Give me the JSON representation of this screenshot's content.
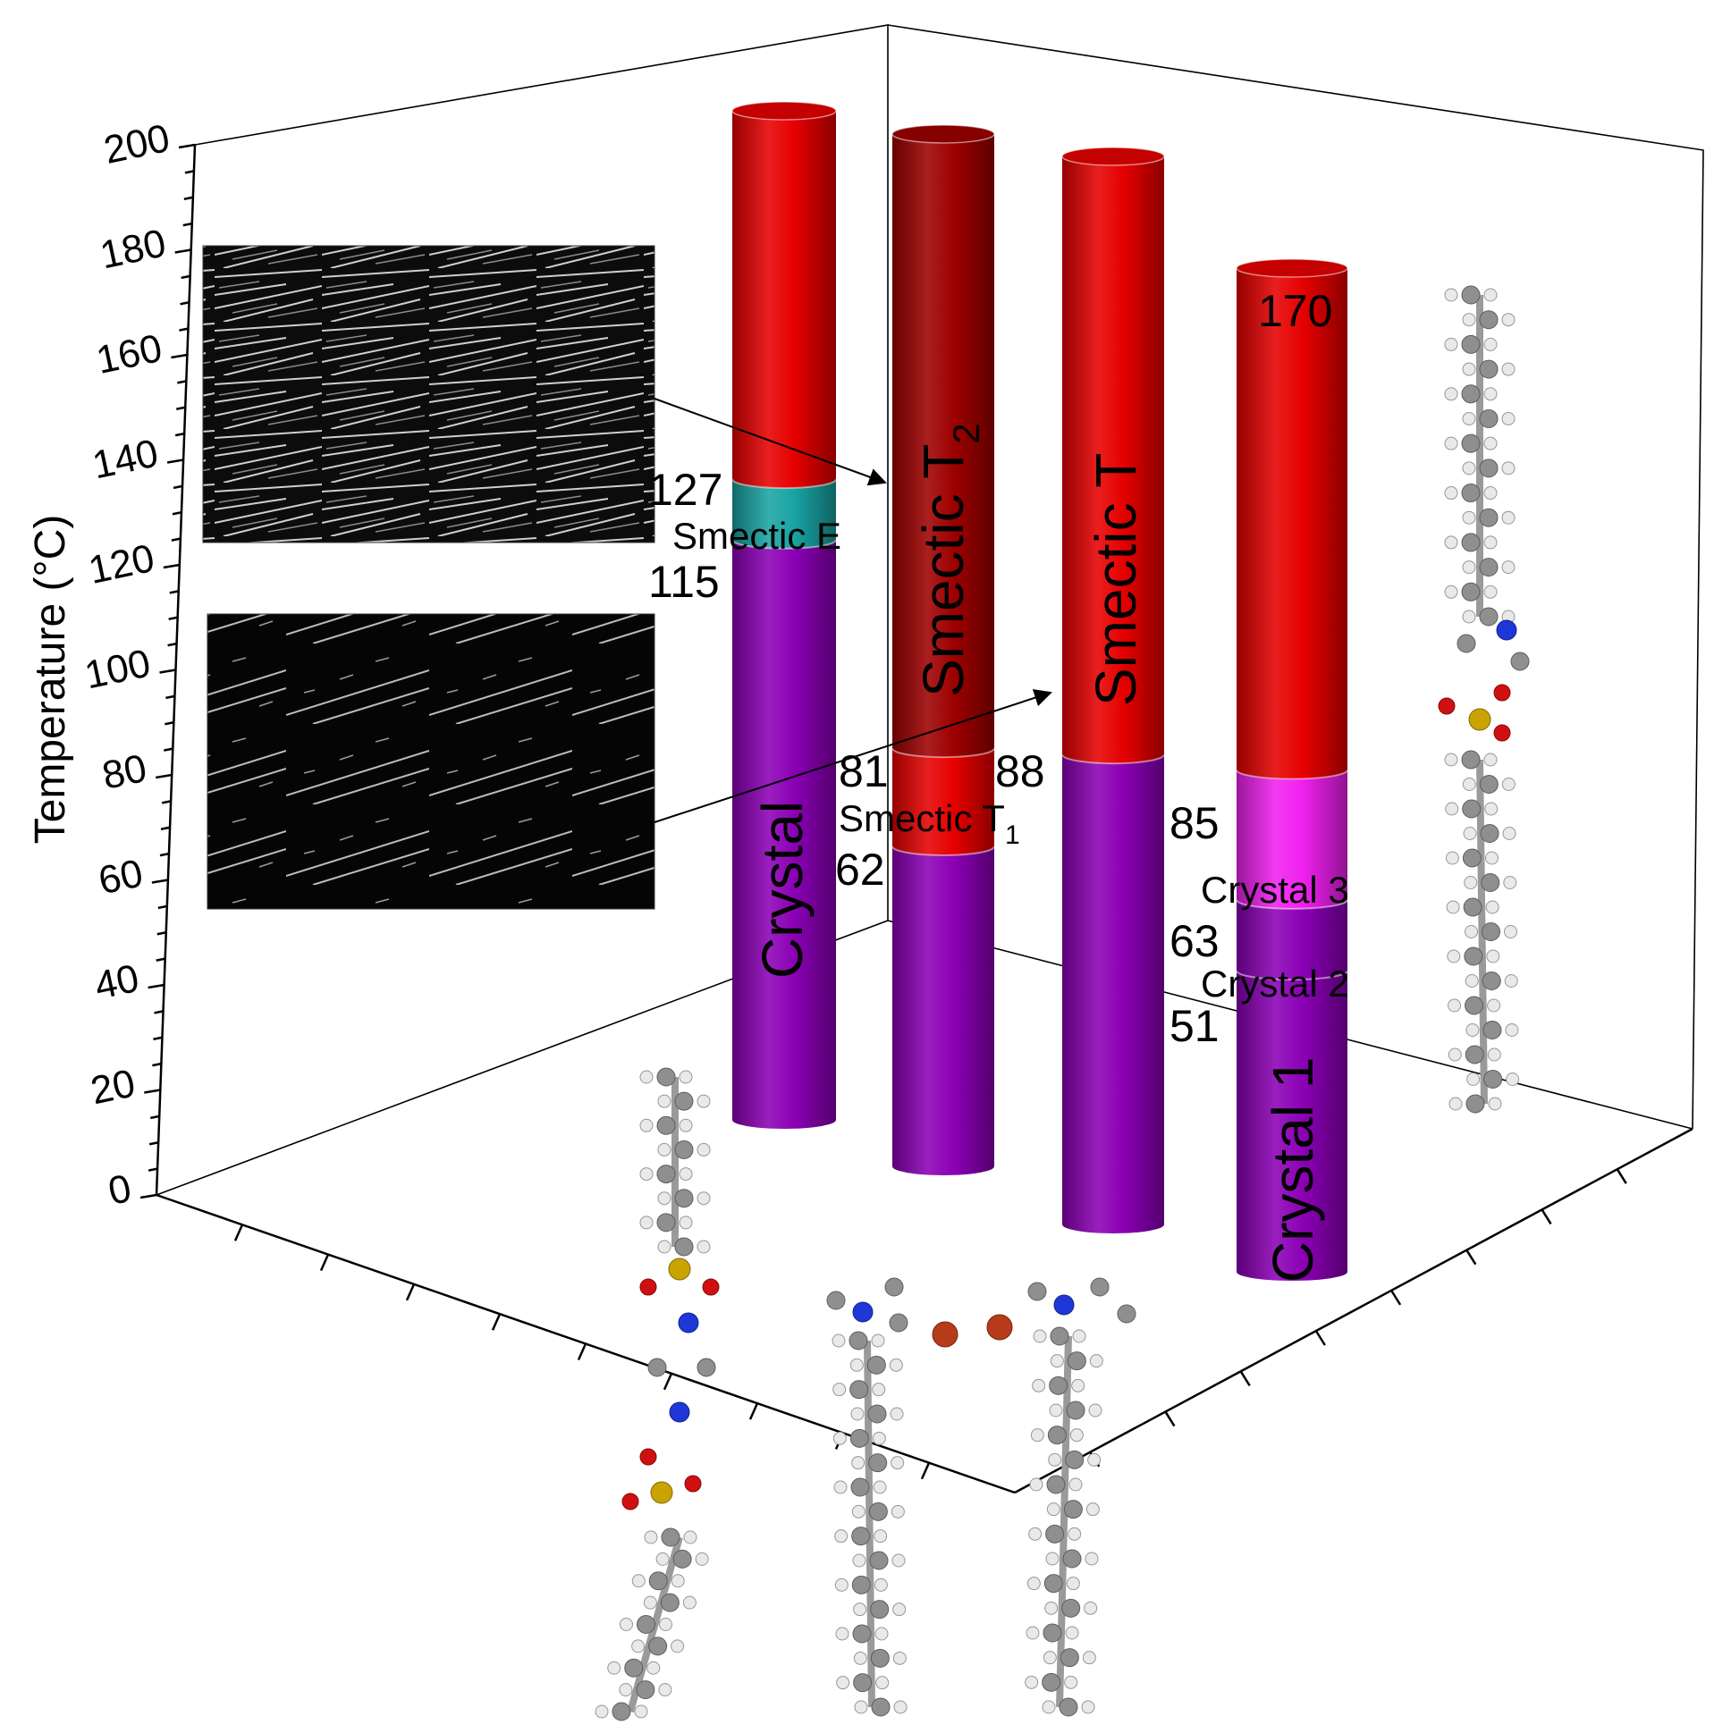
{
  "chart_data": {
    "type": "bar",
    "bar_style": "3d-cylinder",
    "ylabel": "Temperature (°C)",
    "ylim": [
      0,
      200
    ],
    "yticks": [
      0,
      20,
      40,
      60,
      80,
      100,
      120,
      140,
      160,
      180,
      200
    ],
    "colors": {
      "crystal": "#8b00b5",
      "smectic_e": "#19a3a3",
      "red_phase": "#e60000",
      "smectic_t2": "#9e0000",
      "crystal3": "#f020f0"
    },
    "columns": [
      {
        "segments": [
          {
            "name": "Crystal",
            "from": 0,
            "to": 115,
            "color": "#8b00b5"
          },
          {
            "name": "Smectic E",
            "from": 115,
            "to": 127,
            "color": "#19a3a3"
          },
          {
            "name": "",
            "from": 127,
            "to": 200,
            "color": "#e60000"
          }
        ],
        "transition_labels": [
          "115",
          "127"
        ]
      },
      {
        "segments": [
          {
            "name": "",
            "from": 0,
            "to": 62,
            "color": "#8b00b5"
          },
          {
            "name": "Smectic T",
            "subscript": "1",
            "from": 62,
            "to": 81,
            "color": "#e60000"
          },
          {
            "name": "Smectic T",
            "subscript": "2",
            "from": 81,
            "to": 200,
            "color": "#9e0000"
          }
        ],
        "transition_labels": [
          "62",
          "81"
        ]
      },
      {
        "segments": [
          {
            "name": "",
            "from": 0,
            "to": 88,
            "color": "#8b00b5"
          },
          {
            "name": "Smectic T",
            "from": 88,
            "to": 200,
            "color": "#e60000"
          }
        ],
        "transition_labels": [
          "88"
        ]
      },
      {
        "segments": [
          {
            "name": "Crystal 1",
            "from": 0,
            "to": 51,
            "color": "#8b00b5"
          },
          {
            "name": "Crystal 2",
            "from": 51,
            "to": 63,
            "color": "#8b00b5"
          },
          {
            "name": "Crystal 3",
            "from": 63,
            "to": 85,
            "color": "#f020f0"
          },
          {
            "name": "",
            "from": 85,
            "to": 170,
            "color": "#e60000"
          }
        ],
        "transition_labels": [
          "51",
          "63",
          "85",
          "170"
        ]
      }
    ],
    "insets": [
      "polarized-micrograph-upper",
      "polarized-micrograph-lower"
    ],
    "annotations": [
      "arrow from upper micrograph to Smectic T2",
      "arrow from lower micrograph to Smectic T"
    ]
  },
  "icons": [
    "molecule-model-icon"
  ]
}
